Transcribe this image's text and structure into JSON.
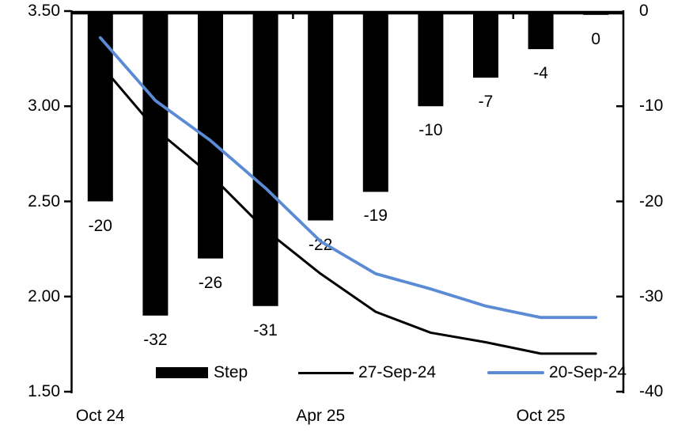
{
  "chart_data": {
    "type": "bar",
    "subtype": "combo-bar-line-dual-axis",
    "title": "",
    "categories_count": 10,
    "x_axis": {
      "tick_labels": [
        "Oct 24",
        "Apr 25",
        "Oct 25"
      ],
      "tick_label_slots": [
        0,
        4,
        8
      ],
      "boundary_tick_slots": [
        4,
        8
      ]
    },
    "left_axis": {
      "ticks": [
        "3.50",
        "3.00",
        "2.50",
        "2.00",
        "1.50"
      ],
      "min": 1.5,
      "max": 3.5
    },
    "right_axis": {
      "ticks": [
        "0",
        "-10",
        "-20",
        "-30",
        "-40"
      ],
      "min": -40,
      "max": 0
    },
    "series": [
      {
        "name": "Step",
        "type": "bar",
        "axis": "right",
        "color": "#000000",
        "values": [
          -20,
          -32,
          -26,
          -31,
          -22,
          -19,
          -10,
          -7,
          -4,
          -0.4
        ],
        "data_labels": [
          "-20",
          "-32",
          "-26",
          "-31",
          "-22",
          "-19",
          "-10",
          "-7",
          "-4",
          "0"
        ]
      },
      {
        "name": "27-Sep-24",
        "type": "line",
        "axis": "left",
        "color": "#000000",
        "values": [
          3.22,
          2.88,
          2.64,
          2.35,
          2.12,
          1.92,
          1.81,
          1.76,
          1.7,
          1.7
        ]
      },
      {
        "name": "20-Sep-24",
        "type": "line",
        "axis": "left",
        "color": "#5b8bd4",
        "values": [
          3.36,
          3.03,
          2.82,
          2.57,
          2.29,
          2.12,
          2.04,
          1.95,
          1.89,
          1.89
        ]
      }
    ],
    "legend": [
      {
        "label": "Step",
        "swatch": "bar",
        "color": "#000000"
      },
      {
        "label": "27-Sep-24",
        "swatch": "line",
        "color": "#000000"
      },
      {
        "label": "20-Sep-24",
        "swatch": "line",
        "color": "#5b8bd4"
      }
    ],
    "legend_position": "inside-bottom",
    "grid": false,
    "background": "#ffffff"
  }
}
